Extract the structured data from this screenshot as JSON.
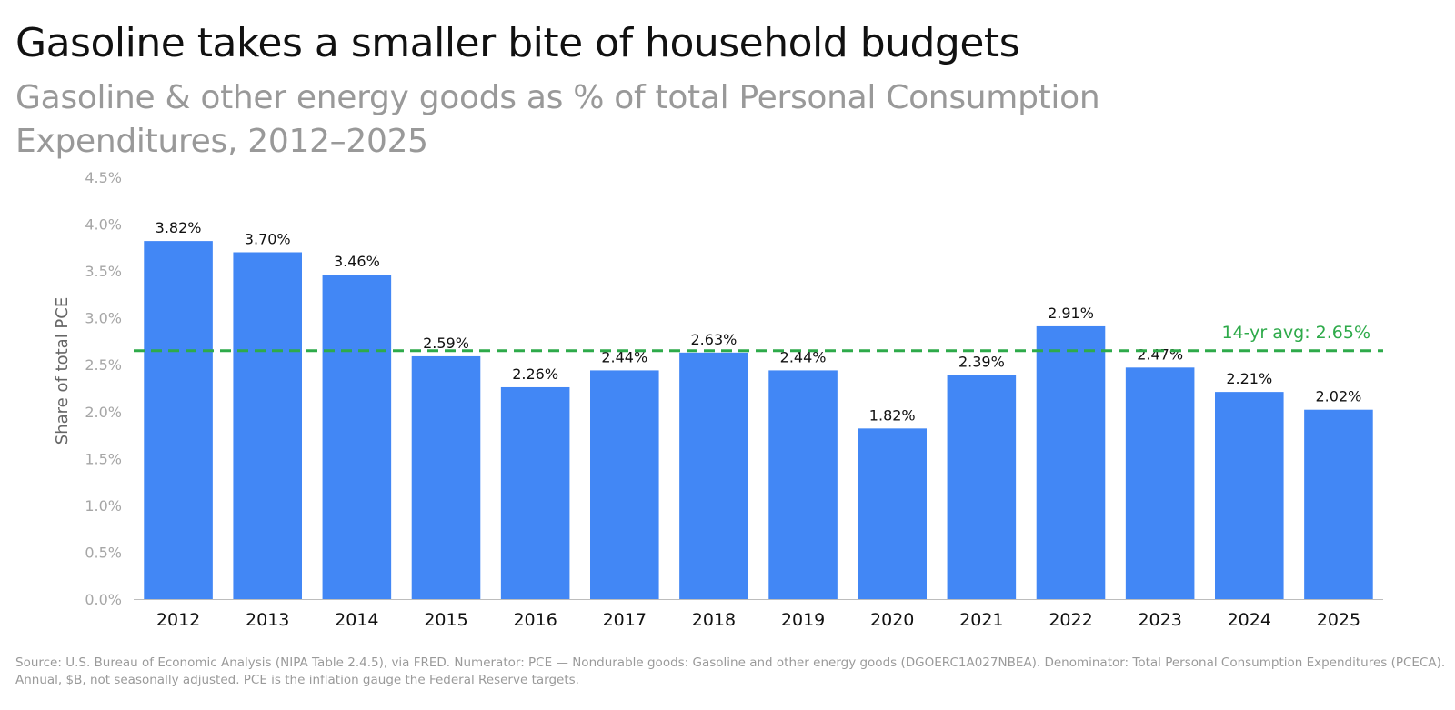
{
  "header": {
    "title": "Gasoline takes a smaller bite of household budgets",
    "subtitle": "Gasoline & other energy goods as % of total Personal Consumption Expenditures, 2012–2025"
  },
  "footnote": "Source: U.S. Bureau of Economic Analysis (NIPA Table 2.4.5), via FRED. Numerator: PCE — Nondurable goods: Gasoline and other energy goods (DGOERC1A027NBEA). Denominator: Total Personal Consumption Expenditures (PCECA). Annual, $B, not seasonally adjusted. PCE is the inflation gauge the Federal Reserve targets.",
  "chart_data": {
    "type": "bar",
    "categories": [
      "2012",
      "2013",
      "2014",
      "2015",
      "2016",
      "2017",
      "2018",
      "2019",
      "2020",
      "2021",
      "2022",
      "2023",
      "2024",
      "2025"
    ],
    "values": [
      3.82,
      3.7,
      3.46,
      2.59,
      2.26,
      2.44,
      2.63,
      2.44,
      1.82,
      2.39,
      2.91,
      2.47,
      2.21,
      2.02
    ],
    "value_labels": [
      "3.82%",
      "3.70%",
      "3.46%",
      "2.59%",
      "2.26%",
      "2.44%",
      "2.63%",
      "2.44%",
      "1.82%",
      "2.39%",
      "2.91%",
      "2.47%",
      "2.21%",
      "2.02%"
    ],
    "ylabel": "Share of total PCE",
    "ylim": [
      0,
      4.5
    ],
    "yticks": [
      0,
      0.5,
      1.0,
      1.5,
      2.0,
      2.5,
      3.0,
      3.5,
      4.0,
      4.5
    ],
    "ytick_labels": [
      "0.0%",
      "0.5%",
      "1.0%",
      "1.5%",
      "2.0%",
      "2.5%",
      "3.0%",
      "3.5%",
      "4.0%",
      "4.5%"
    ],
    "grid": false,
    "bar_color": "#4287f5",
    "reference_line": {
      "value": 2.65,
      "label": "14-yr avg: 2.65%",
      "color": "#2eaa4a",
      "style": "dashed"
    }
  }
}
